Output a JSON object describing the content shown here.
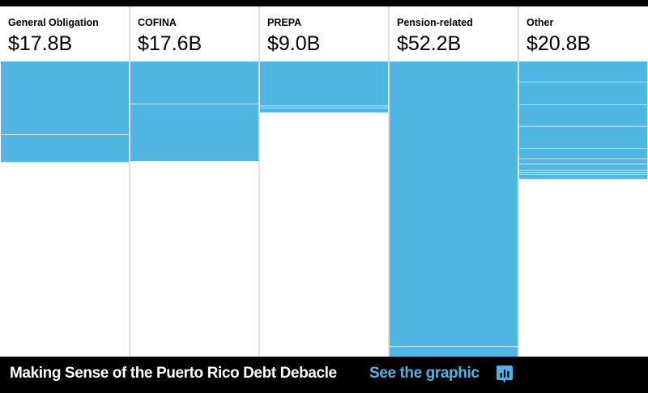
{
  "colors": {
    "bar": "#52b6e2",
    "divider": "#ffffff",
    "background": "#ffffff",
    "frame": "#000000",
    "link": "#4fb4e3"
  },
  "chart_data": {
    "type": "bar",
    "categories": [
      "General Obligation",
      "COFINA",
      "PREPA",
      "Pension-related",
      "Other"
    ],
    "value_labels": [
      "$17.8B",
      "$17.6B",
      "$9.0B",
      "$52.2B",
      "$20.8B"
    ],
    "values": [
      17.8,
      17.6,
      9.0,
      52.2,
      20.8
    ],
    "unit": "billion USD",
    "stacked": true,
    "segments": [
      [
        13.0,
        4.8
      ],
      [
        7.6,
        10.0
      ],
      [
        7.9,
        0.4,
        0.7
      ],
      [
        50.5,
        1.7
      ],
      [
        3.7,
        4.0,
        3.8,
        3.9,
        1.9,
        0.9,
        1.1,
        0.4,
        0.3,
        0.8
      ]
    ],
    "ylim": [
      0,
      52.2
    ],
    "grid": false,
    "legend": "none"
  },
  "footer": {
    "title": "Making Sense of the Puerto Rico Debt Debacle",
    "link": "See the graphic",
    "icon": "bar-chart-icon"
  }
}
